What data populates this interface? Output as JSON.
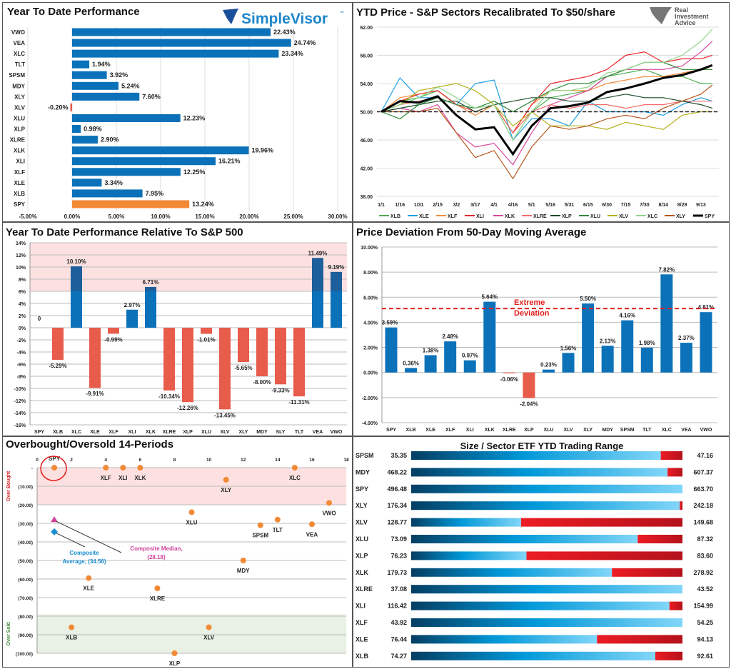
{
  "colors": {
    "bar_blue": "#0b72b9",
    "bar_blue_dark": "#1d5f9b",
    "spy_orange": "#f28a35",
    "neg_red": "#e85c4c",
    "overbought_zone": "#fde1e1",
    "oversold_zone": "#e8f1e4",
    "extreme_line": "#e31b1b",
    "range_red": "#d9141c"
  },
  "logos": {
    "simplevisor": "SimpleVisor",
    "simplevisor_tm": "™",
    "ria_line1": "Real",
    "ria_line2": "Investment",
    "ria_line3": "Advice"
  },
  "chart_data": [
    {
      "type": "bar",
      "orientation": "horizontal",
      "title": "Year To Date Performance",
      "categories": [
        "VWO",
        "VEA",
        "XLC",
        "TLT",
        "SPSM",
        "MDY",
        "XLY",
        "XLV",
        "XLU",
        "XLP",
        "XLRE",
        "XLK",
        "XLI",
        "XLF",
        "XLE",
        "XLB",
        "SPY"
      ],
      "values": [
        22.43,
        24.74,
        23.34,
        1.94,
        3.92,
        5.24,
        7.6,
        -0.2,
        12.23,
        0.98,
        2.9,
        19.96,
        16.21,
        12.25,
        3.34,
        7.95,
        13.24
      ],
      "labels": [
        "22.43%",
        "24.74%",
        "23.34%",
        "1.94%",
        "3.92%",
        "5.24%",
        "7.60%",
        "-0.20%",
        "12.23%",
        "0.98%",
        "2.90%",
        "19.96%",
        "16.21%",
        "12.25%",
        "3.34%",
        "7.95%",
        "13.24%"
      ],
      "highlight": "SPY",
      "xlim": [
        -5,
        30
      ],
      "ticks": [
        -5,
        0,
        5,
        10,
        15,
        20,
        25,
        30
      ],
      "tick_labels": [
        "-5.00%",
        "0.00%",
        "5.00%",
        "10.00%",
        "15.00%",
        "20.00%",
        "25.00%",
        "30.00%"
      ],
      "grid": true
    },
    {
      "type": "line",
      "title": "YTD Price - S&P Sectors Recalibrated To $50/share",
      "x": [
        "1/1",
        "1/16",
        "1/31",
        "2/15",
        "3/2",
        "3/17",
        "4/1",
        "4/16",
        "5/1",
        "5/16",
        "5/31",
        "6/15",
        "6/30",
        "7/15",
        "7/30",
        "8/14",
        "8/29",
        "9/13",
        "9/22"
      ],
      "x_tick_labels": [
        "1/1",
        "1/16",
        "1/31",
        "2/15",
        "3/2",
        "3/17",
        "4/1",
        "4/16",
        "5/1",
        "5/16",
        "5/31",
        "6/15",
        "6/30",
        "7/15",
        "7/30",
        "8/14",
        "8/29",
        "9/13"
      ],
      "ylim": [
        38,
        62
      ],
      "y_ticks": [
        62,
        58,
        54,
        50,
        46,
        42,
        38
      ],
      "y_tick_labels": [
        "62.00",
        "58.00",
        "54.00",
        "50.00",
        "46.00",
        "42.00",
        "38.00"
      ],
      "reference_line": 50,
      "legend_position": "bottom",
      "grid": true,
      "series": [
        {
          "name": "XLB",
          "color": "#4caf50",
          "values": [
            50,
            51.5,
            52,
            53,
            51,
            50,
            51,
            46,
            50,
            52,
            52.5,
            53,
            55,
            55.5,
            56,
            55,
            55,
            54,
            54
          ]
        },
        {
          "name": "XLE",
          "color": "#1ea0e6",
          "values": [
            50,
            54.8,
            52,
            52,
            51,
            54,
            54.5,
            46,
            49,
            49,
            48,
            51.5,
            50,
            50,
            50,
            49.5,
            51,
            52,
            51.5
          ]
        },
        {
          "name": "XLF",
          "color": "#f28c3c",
          "values": [
            50,
            52,
            52.5,
            53,
            51,
            49.5,
            51,
            47,
            51,
            53,
            53,
            53,
            54,
            54.5,
            55,
            55,
            55.5,
            56,
            56
          ]
        },
        {
          "name": "XLI",
          "color": "#e8262a",
          "values": [
            50,
            51.5,
            52.5,
            53,
            51,
            50,
            51,
            47,
            51,
            54,
            54.5,
            55,
            56,
            58,
            58.5,
            57,
            57.5,
            57.5,
            58
          ]
        },
        {
          "name": "XLK",
          "color": "#d9479b",
          "values": [
            50,
            50.5,
            50,
            51,
            47,
            45,
            45.5,
            42.5,
            47,
            51,
            52,
            53,
            55,
            56,
            56,
            56,
            56.5,
            58.5,
            60
          ]
        },
        {
          "name": "XLRE",
          "color": "#f26b6b",
          "values": [
            50,
            51,
            51.5,
            52,
            51,
            50,
            51,
            47,
            50,
            51,
            50.5,
            51,
            51,
            50.5,
            51,
            51,
            51.5,
            51.5,
            51.5
          ]
        },
        {
          "name": "XLP",
          "color": "#1e4d2b",
          "values": [
            50,
            50.5,
            51,
            51.5,
            51.5,
            50,
            51,
            51.5,
            52,
            52,
            51.5,
            51.5,
            52,
            52.5,
            52,
            52,
            51.5,
            51,
            50.5
          ]
        },
        {
          "name": "XLU",
          "color": "#2e8b3a",
          "values": [
            50,
            49,
            51,
            52,
            51,
            50.5,
            51.5,
            50,
            51.5,
            53,
            54,
            54,
            55,
            56,
            57,
            57,
            56,
            56,
            56
          ]
        },
        {
          "name": "XLV",
          "color": "#b5b01e",
          "values": [
            50,
            51,
            53,
            53.5,
            54,
            53,
            51,
            48,
            50,
            48,
            48,
            48,
            47.5,
            48.5,
            48,
            47.5,
            49.5,
            50,
            50
          ]
        },
        {
          "name": "XLC",
          "color": "#8fd48a",
          "values": [
            50,
            51,
            52,
            53.5,
            52,
            50.5,
            51,
            46,
            50,
            53,
            53,
            53.5,
            55.5,
            56,
            57,
            57,
            58,
            60,
            61.7
          ]
        },
        {
          "name": "XLY",
          "color": "#b5561c",
          "values": [
            50,
            50,
            50,
            50.5,
            47,
            43.5,
            44.5,
            40.5,
            45,
            48,
            47.5,
            48,
            49,
            49.5,
            49,
            50.5,
            51.5,
            52.5,
            53.8
          ]
        },
        {
          "name": "SPY",
          "color": "#000000",
          "values": [
            50,
            51.5,
            51.3,
            52.2,
            49.5,
            47.5,
            47.8,
            44,
            48,
            50.5,
            50.8,
            51.3,
            52.8,
            53.3,
            54,
            54.8,
            55.2,
            56,
            56.6
          ]
        }
      ]
    },
    {
      "type": "bar",
      "title": "Year To Date Performance Relative To S&P 500",
      "categories": [
        "SPY",
        "XLB",
        "XLC",
        "XLE",
        "XLF",
        "XLI",
        "XLK",
        "XLRE",
        "XLP",
        "XLU",
        "XLV",
        "XLY",
        "MDY",
        "SLY",
        "TLT",
        "VEA",
        "VWO"
      ],
      "values": [
        0,
        -5.29,
        10.1,
        -9.91,
        -0.99,
        2.97,
        6.71,
        -10.34,
        -12.26,
        -1.01,
        -13.45,
        -5.65,
        -8.0,
        -9.33,
        -11.31,
        11.49,
        9.19
      ],
      "labels": [
        "0",
        "-5.29%",
        "10.10%",
        "-9.91%",
        "-0.99%",
        "2.97%",
        "6.71%",
        "-10.34%",
        "-12.26%",
        "-1.01%",
        "-13.45%",
        "-5.65%",
        "-8.00%",
        "-9.33%",
        "-11.31%",
        "11.49%",
        "9.19%"
      ],
      "ylim": [
        -16,
        14
      ],
      "y_ticks": [
        14,
        12,
        10,
        8,
        6,
        4,
        2,
        0,
        -2,
        -4,
        -6,
        -8,
        -10,
        -12,
        -14,
        -16
      ],
      "y_tick_labels": [
        "14%",
        "12%",
        "10%",
        "8%",
        "6%",
        "4%",
        "2%",
        "0%",
        "-2%",
        "-4%",
        "-6%",
        "-8%",
        "-10%",
        "-12%",
        "-14%",
        "-16%"
      ],
      "shaded_band": [
        6,
        14
      ],
      "grid": true
    },
    {
      "type": "bar",
      "title": "Price Deviation From 50-Day Moving Average",
      "categories": [
        "SPY",
        "XLB",
        "XLE",
        "XLF",
        "XLI",
        "XLK",
        "XLRE",
        "XLP",
        "XLU",
        "XLV",
        "XLY",
        "MDY",
        "SPSM",
        "TLT",
        "XLC",
        "VEA",
        "VWO"
      ],
      "values": [
        3.59,
        0.36,
        1.38,
        2.48,
        0.97,
        5.64,
        -0.06,
        -2.04,
        0.23,
        1.56,
        5.5,
        2.13,
        4.16,
        1.98,
        7.82,
        2.37,
        4.81
      ],
      "labels": [
        "3.59%",
        "0.36%",
        "1.38%",
        "2.48%",
        "0.97%",
        "5.64%",
        "-0.06%",
        "-2.04%",
        "0.23%",
        "1.56%",
        "5.50%",
        "2.13%",
        "4.16%",
        "1.98%",
        "7.82%",
        "2.37%",
        "4.81%"
      ],
      "ylim": [
        -4,
        10
      ],
      "y_ticks": [
        10,
        8,
        6,
        4,
        2,
        0,
        -2,
        -4
      ],
      "y_tick_labels": [
        "10.00%",
        "8.00%",
        "6.00%",
        "4.00%",
        "2.00%",
        "0.00%",
        "-2.00%",
        "-4.00%"
      ],
      "threshold": {
        "value": 5.1,
        "label_line1": "Extreme",
        "label_line2": "Deviation"
      },
      "grid": true
    },
    {
      "type": "scatter",
      "title": "Overbought/Oversold 14-Periods",
      "xlim": [
        0,
        18
      ],
      "x_ticks": [
        0,
        2,
        4,
        6,
        8,
        10,
        12,
        14,
        16,
        18
      ],
      "x_tick_labels": [
        "0",
        "2",
        "4",
        "6",
        "8",
        "10",
        "12",
        "14",
        "16",
        "18"
      ],
      "ylim": [
        -100,
        0
      ],
      "y_ticks": [
        0,
        -10,
        -20,
        -30,
        -40,
        -50,
        -60,
        -70,
        -80,
        -90,
        -100
      ],
      "y_tick_labels": [
        "-",
        "(10.00)",
        "(20.00)",
        "(30.00)",
        "(40.00)",
        "(50.00)",
        "(60.00)",
        "(70.00)",
        "(80.00)",
        "(90.00)",
        "(100.00)"
      ],
      "zones": [
        {
          "label": "Over Bought",
          "range": [
            -20,
            0
          ],
          "color": "#fde1e1",
          "text_color": "#d81e1e"
        },
        {
          "label": "Over Sold",
          "range": [
            -100,
            -79
          ],
          "color": "#e8f1e4",
          "text_color": "#3e8a3a"
        }
      ],
      "points": [
        {
          "name": "SPY",
          "x": 1,
          "y": 0,
          "circled": true
        },
        {
          "name": "XLF",
          "x": 4,
          "y": 0
        },
        {
          "name": "XLI",
          "x": 5,
          "y": 0
        },
        {
          "name": "XLK",
          "x": 6,
          "y": 0
        },
        {
          "name": "XLC",
          "x": 15,
          "y": 0
        },
        {
          "name": "XLY",
          "x": 11,
          "y": -6.5
        },
        {
          "name": "VWO",
          "x": 17,
          "y": -19
        },
        {
          "name": "XLU",
          "x": 9,
          "y": -24
        },
        {
          "name": "TLT",
          "x": 14,
          "y": -28
        },
        {
          "name": "SPSM",
          "x": 13,
          "y": -31
        },
        {
          "name": "VEA",
          "x": 16,
          "y": -30.5
        },
        {
          "name": "MDY",
          "x": 12,
          "y": -50
        },
        {
          "name": "XLE",
          "x": 3,
          "y": -59.5
        },
        {
          "name": "XLRE",
          "x": 7,
          "y": -65
        },
        {
          "name": "XLB",
          "x": 2,
          "y": -86
        },
        {
          "name": "XLV",
          "x": 10,
          "y": -86
        },
        {
          "name": "XLP",
          "x": 8,
          "y": -100
        }
      ],
      "point_color": "#f28a35",
      "annotations": [
        {
          "label_line1": "Composite Median,",
          "label_line2": "(28.18)",
          "x": 1,
          "y": -28.18,
          "marker": "triangle",
          "color": "#d0429b"
        },
        {
          "label_line1": "Composite",
          "label_line2": "Average,  (34.56)",
          "x": 1,
          "y": -34.56,
          "marker": "diamond",
          "color": "#1a8fd0"
        }
      ]
    },
    {
      "type": "range-bar",
      "title": "Size / Sector ETF YTD Trading Range",
      "rows": [
        {
          "ticker": "SPSM",
          "low": "35.35",
          "high": "47.16",
          "position_pct": 92
        },
        {
          "ticker": "MDY",
          "low": "468.22",
          "high": "607.37",
          "position_pct": 94.5
        },
        {
          "ticker": "SPY",
          "low": "496.48",
          "high": "663.70",
          "position_pct": 100
        },
        {
          "ticker": "XLY",
          "low": "176.34",
          "high": "242.18",
          "position_pct": 99
        },
        {
          "ticker": "XLV",
          "low": "128.77",
          "high": "149.68",
          "position_pct": 40.5
        },
        {
          "ticker": "XLU",
          "low": "73.09",
          "high": "87.32",
          "position_pct": 83.5
        },
        {
          "ticker": "XLP",
          "low": "76.23",
          "high": "83.60",
          "position_pct": 42.5
        },
        {
          "ticker": "XLK",
          "low": "179.73",
          "high": "278.92",
          "position_pct": 74
        },
        {
          "ticker": "XLRE",
          "low": "37.08",
          "high": "43.52",
          "position_pct": 100
        },
        {
          "ticker": "XLI",
          "low": "116.42",
          "high": "154.99",
          "position_pct": 95.2
        },
        {
          "ticker": "XLF",
          "low": "43.92",
          "high": "54.25",
          "position_pct": 100
        },
        {
          "ticker": "XLE",
          "low": "76.44",
          "high": "94.13",
          "position_pct": 68.5
        },
        {
          "ticker": "XLB",
          "low": "74.27",
          "high": "92.61",
          "position_pct": 90
        }
      ]
    }
  ]
}
